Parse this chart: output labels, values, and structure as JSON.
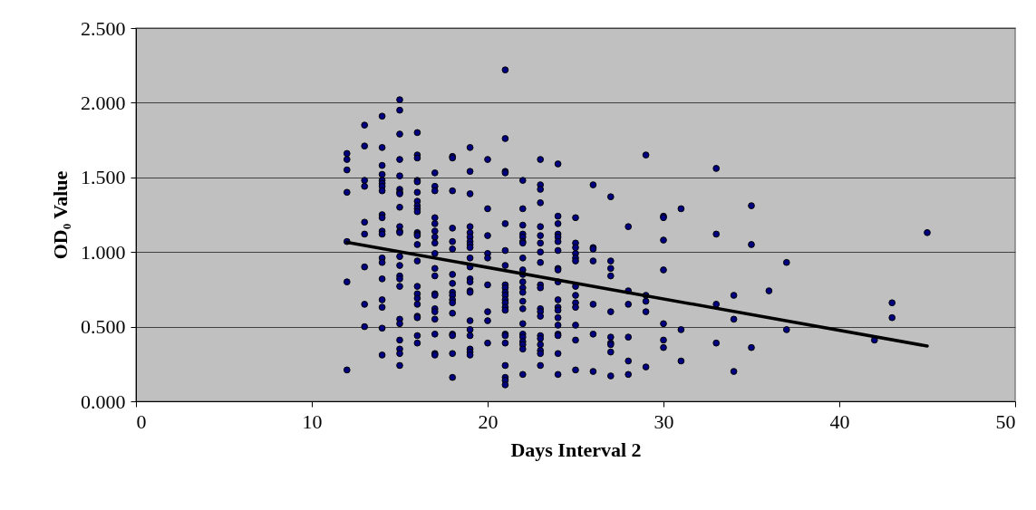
{
  "chart_data": {
    "type": "scatter",
    "xlabel": "Days Interval 2",
    "ylabel": "OD₀ Value",
    "xlim": [
      0,
      50
    ],
    "xticks": [
      0,
      10,
      20,
      30,
      40,
      50
    ],
    "ylim": [
      0,
      2.5
    ],
    "yticks": [
      {
        "value": 0,
        "label": "0.000"
      },
      {
        "value": 0.5,
        "label": "0.500"
      },
      {
        "value": 1,
        "label": "1.000"
      },
      {
        "value": 1.5,
        "label": "1.500"
      },
      {
        "value": 2,
        "label": "2.000"
      },
      {
        "value": 2.5,
        "label": "2.500"
      }
    ],
    "grid": "y",
    "series": [
      {
        "color": "#000080",
        "marker": "circle",
        "x": [
          12,
          12,
          12,
          12,
          12,
          12,
          12,
          13,
          13,
          13,
          13,
          13,
          13,
          13,
          13,
          13,
          14,
          14,
          14,
          14,
          14,
          14,
          14,
          14,
          14,
          14,
          14,
          14,
          14,
          14,
          14,
          14,
          14,
          14,
          14,
          15,
          15,
          15,
          15,
          15,
          15,
          15,
          15,
          15,
          15,
          15,
          15,
          15,
          15,
          15,
          15,
          15,
          15,
          15,
          15,
          15,
          15,
          15,
          16,
          16,
          16,
          16,
          16,
          16,
          16,
          16,
          16,
          16,
          16,
          16,
          16,
          16,
          16,
          16,
          16,
          16,
          16,
          16,
          16,
          16,
          16,
          17,
          17,
          17,
          17,
          17,
          17,
          17,
          17,
          17,
          17,
          17,
          17,
          17,
          17,
          17,
          17,
          17,
          17,
          17,
          18,
          18,
          18,
          18,
          18,
          18,
          18,
          18,
          18,
          18,
          18,
          18,
          18,
          18,
          18,
          18,
          18,
          19,
          19,
          19,
          19,
          19,
          19,
          19,
          19,
          19,
          19,
          19,
          19,
          19,
          19,
          19,
          19,
          19,
          19,
          19,
          19,
          19,
          20,
          20,
          20,
          20,
          20,
          20,
          20,
          20,
          20,
          21,
          21,
          21,
          21,
          21,
          21,
          21,
          21,
          21,
          21,
          21,
          21,
          21,
          21,
          21,
          21,
          21,
          21,
          21,
          21,
          21,
          21,
          22,
          22,
          22,
          22,
          22,
          22,
          22,
          22,
          22,
          22,
          22,
          22,
          22,
          22,
          22,
          22,
          22,
          22,
          22,
          22,
          22,
          22,
          23,
          23,
          23,
          23,
          23,
          23,
          23,
          23,
          23,
          23,
          23,
          23,
          23,
          23,
          23,
          23,
          23,
          23,
          23,
          23,
          24,
          24,
          24,
          24,
          24,
          24,
          24,
          24,
          24,
          24,
          24,
          24,
          24,
          24,
          24,
          24,
          24,
          24,
          24,
          25,
          25,
          25,
          25,
          25,
          25,
          25,
          25,
          25,
          25,
          25,
          25,
          25,
          26,
          26,
          26,
          26,
          26,
          26,
          26,
          27,
          27,
          27,
          27,
          27,
          27,
          27,
          27,
          27,
          27,
          28,
          28,
          28,
          28,
          28,
          28,
          29,
          29,
          29,
          29,
          29,
          30,
          30,
          30,
          30,
          30,
          30,
          30,
          31,
          31,
          31,
          33,
          33,
          33,
          33,
          34,
          34,
          34,
          35,
          35,
          35,
          36,
          37,
          37,
          42,
          43,
          43,
          45
        ],
        "values": [
          1.66,
          1.62,
          1.55,
          1.4,
          1.07,
          0.8,
          0.21,
          1.85,
          1.71,
          1.48,
          1.44,
          1.2,
          1.12,
          0.9,
          0.65,
          0.5,
          1.91,
          1.7,
          1.58,
          1.52,
          1.48,
          1.46,
          1.44,
          1.41,
          1.25,
          1.23,
          1.14,
          1.12,
          0.96,
          0.93,
          0.82,
          0.68,
          0.63,
          0.49,
          0.31,
          2.02,
          1.95,
          1.79,
          1.62,
          1.51,
          1.42,
          1.4,
          1.39,
          1.3,
          1.17,
          1.14,
          1.13,
          0.97,
          0.91,
          0.84,
          0.82,
          0.77,
          0.55,
          0.52,
          0.41,
          0.35,
          0.32,
          0.24,
          1.8,
          1.65,
          1.63,
          1.48,
          1.47,
          1.4,
          1.34,
          1.31,
          1.29,
          1.27,
          1.13,
          1.12,
          1.11,
          1.05,
          0.94,
          0.77,
          0.72,
          0.69,
          0.65,
          0.57,
          0.56,
          0.44,
          0.39,
          1.53,
          1.44,
          1.41,
          1.23,
          1.19,
          1.14,
          1.1,
          1.06,
          0.99,
          0.89,
          0.84,
          0.72,
          0.71,
          0.62,
          0.6,
          0.55,
          0.45,
          0.32,
          0.31,
          1.64,
          1.63,
          1.41,
          1.16,
          1.07,
          1.02,
          0.85,
          0.79,
          0.73,
          0.71,
          0.68,
          0.66,
          0.59,
          0.45,
          0.44,
          0.32,
          0.16,
          1.7,
          1.54,
          1.39,
          1.17,
          1.13,
          1.1,
          1.07,
          1.05,
          1.03,
          0.96,
          0.9,
          0.82,
          0.8,
          0.74,
          0.73,
          0.54,
          0.48,
          0.44,
          0.35,
          0.33,
          0.31,
          1.62,
          1.29,
          1.11,
          0.99,
          0.96,
          0.78,
          0.6,
          0.54,
          0.39,
          2.22,
          1.76,
          1.54,
          1.53,
          1.19,
          1.01,
          0.91,
          0.78,
          0.76,
          0.73,
          0.71,
          0.68,
          0.66,
          0.63,
          0.61,
          0.45,
          0.44,
          0.39,
          0.24,
          0.16,
          0.14,
          0.11,
          1.48,
          1.29,
          1.18,
          1.12,
          1.1,
          1.07,
          1.06,
          0.96,
          0.88,
          0.85,
          0.8,
          0.76,
          0.73,
          0.67,
          0.62,
          0.52,
          0.45,
          0.43,
          0.4,
          0.38,
          0.35,
          0.18,
          1.62,
          1.45,
          1.42,
          1.33,
          1.17,
          1.11,
          1.06,
          1.0,
          0.93,
          0.78,
          0.76,
          0.62,
          0.6,
          0.57,
          0.44,
          0.42,
          0.38,
          0.34,
          0.32,
          0.24,
          1.59,
          1.24,
          1.19,
          1.12,
          1.1,
          1.07,
          1.01,
          0.89,
          0.88,
          0.8,
          0.68,
          0.63,
          0.61,
          0.56,
          0.51,
          0.45,
          0.44,
          0.32,
          0.18,
          1.23,
          1.06,
          1.03,
          0.99,
          0.96,
          0.94,
          0.77,
          0.71,
          0.66,
          0.63,
          0.51,
          0.41,
          0.21,
          1.45,
          1.03,
          1.02,
          0.94,
          0.65,
          0.45,
          0.2,
          1.37,
          0.94,
          0.89,
          0.84,
          0.6,
          0.43,
          0.39,
          0.38,
          0.33,
          0.17,
          1.17,
          0.74,
          0.65,
          0.43,
          0.27,
          0.18,
          1.65,
          0.71,
          0.67,
          0.6,
          0.23,
          1.24,
          1.23,
          1.08,
          0.88,
          0.52,
          0.41,
          0.36,
          1.29,
          0.48,
          0.27,
          1.56,
          1.12,
          0.65,
          0.39,
          0.71,
          0.55,
          0.2,
          1.31,
          1.05,
          0.36,
          0.74,
          0.93,
          0.48,
          0.41,
          0.66,
          0.56,
          1.13
        ]
      },
      {
        "type": "line",
        "color": "#000000",
        "marker": "none",
        "line_style": "solid",
        "x": [
          12,
          45
        ],
        "values": [
          1.065,
          0.37
        ]
      }
    ]
  }
}
